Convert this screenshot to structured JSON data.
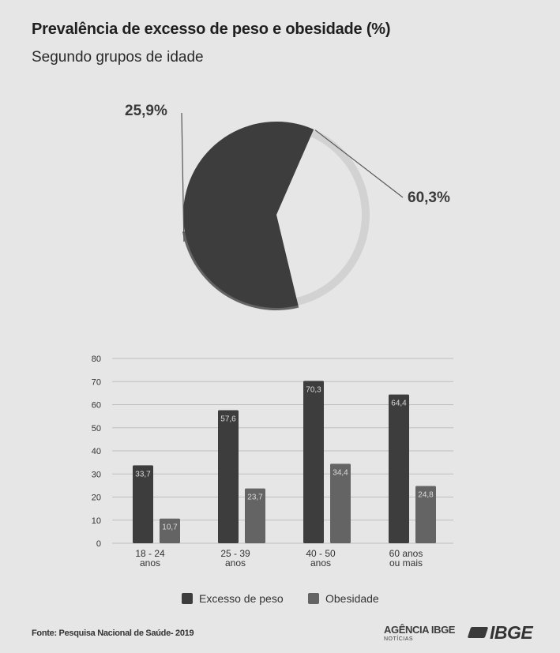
{
  "header": {
    "title": "Prevalência de excesso de peso e obesidade  (%)",
    "subtitle": "Segundo grupos de idade"
  },
  "footer": {
    "source": "Fonte: Pesquisa Nacional de Saúde- 2019",
    "agencia_logo": "AGÊNCIA IBGE",
    "agencia_sub": "NOTÍCIAS",
    "ibge_logo": "IBGE"
  },
  "colors": {
    "background": "#e6e6e6",
    "excess": "#3d3d3d",
    "obesity": "#646464",
    "track": "#d2d2d2",
    "grid": "#bdbdbd",
    "bar_label": "#dcdcdc"
  },
  "chart_data": [
    {
      "type": "pie",
      "labels": [
        "25,9%",
        "60,3%"
      ],
      "values": [
        25.9,
        60.3
      ]
    },
    {
      "type": "bar",
      "categories": [
        [
          "18 - 24",
          "anos"
        ],
        [
          "25 - 39",
          "anos"
        ],
        [
          "40 - 50",
          "anos"
        ],
        [
          "60 anos",
          "ou mais"
        ]
      ],
      "series": [
        {
          "name": "Excesso de peso",
          "values": [
            33.7,
            57.6,
            70.3,
            64.4
          ],
          "labels": [
            "33,7",
            "57,6",
            "70,3",
            "64,4"
          ]
        },
        {
          "name": "Obesidade",
          "values": [
            10.7,
            23.7,
            34.4,
            24.8
          ],
          "labels": [
            "10,7",
            "23,7",
            "34,4",
            "24,8"
          ]
        }
      ],
      "ylim": [
        0,
        80
      ],
      "yticks": [
        0,
        10,
        20,
        30,
        40,
        50,
        60,
        70,
        80
      ],
      "grid": true,
      "legend_position": "bottom"
    }
  ]
}
